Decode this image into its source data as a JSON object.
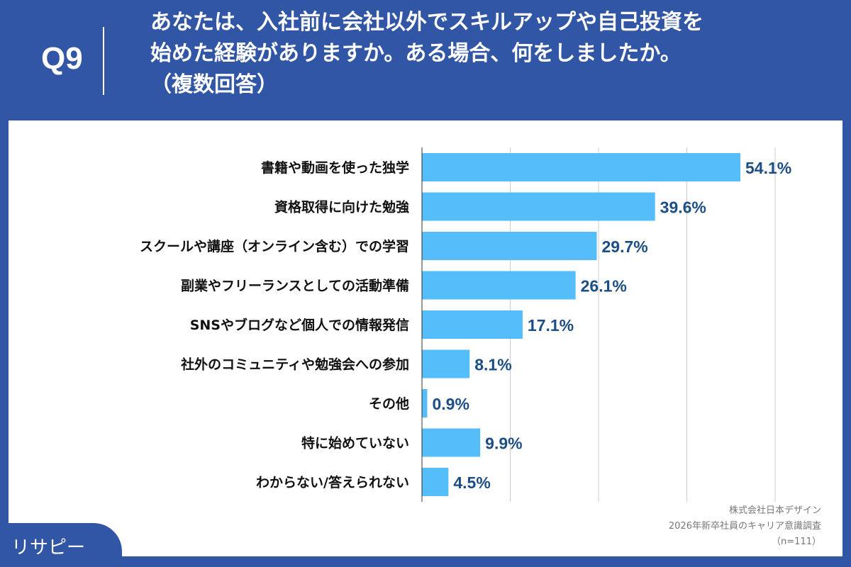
{
  "header": {
    "question_no": "Q9",
    "title_lines": [
      "あなたは、入社前に会社以外でスキルアップや自己投資を",
      "始めた経験がありますか。ある場合、何をしましたか。",
      "（複数回答）"
    ]
  },
  "chart_data": {
    "type": "bar",
    "orientation": "horizontal",
    "categories": [
      "書籍や動画を使った独学",
      "資格取得に向けた勉強",
      "スクールや講座（オンライン含む）での学習",
      "副業やフリーランスとしての活動準備",
      "SNSやブログなど個人での情報発信",
      "社外のコミュニティや勉強会への参加",
      "その他",
      "特に始めていない",
      "わからない/答えられない"
    ],
    "values": [
      54.1,
      39.6,
      29.7,
      26.1,
      17.1,
      8.1,
      0.9,
      9.9,
      4.5
    ],
    "value_labels": [
      "54.1%",
      "39.6%",
      "29.7%",
      "26.1%",
      "17.1%",
      "8.1%",
      "0.9%",
      "9.9%",
      "4.5%"
    ],
    "xlim": [
      0,
      60
    ],
    "grid": true,
    "grid_step": 15,
    "bar_color": "#55bdf9",
    "label_color": "#1c4e86"
  },
  "footer": {
    "source_lines": [
      "株式会社日本デザイン",
      "2026年新卒社員のキャリア意識調査",
      "（n=111）"
    ],
    "logo": "リサピー"
  }
}
